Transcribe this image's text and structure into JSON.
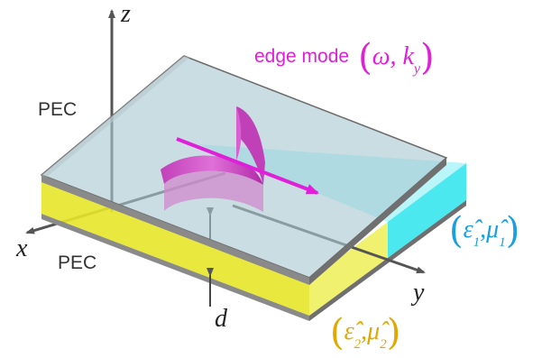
{
  "labels": {
    "pec_top": "PEC",
    "pec_bottom": "PEC",
    "axis_x": "x",
    "axis_y": "y",
    "axis_z": "z",
    "gap": "d",
    "edge_mode_text": "edge mode",
    "edge_mode_params": "ω, k",
    "edge_mode_sub": "y",
    "region1_eps": "ε̂",
    "region1_eps_sub": "1",
    "region1_mu": "μ̂",
    "region1_mu_sub": "1",
    "region2_eps": "ε̂",
    "region2_eps_sub": "2",
    "region2_mu": "μ̂",
    "region2_mu_sub": "2",
    "comma": ","
  },
  "colors": {
    "magenta": "#e020d8",
    "cyan_label": "#1aa0e0",
    "yellow_label": "#e0a800",
    "cyan_region": "#38e6ee",
    "yellow_region": "#e6e62a",
    "plate": "#9fbcc8",
    "axis": "#555555"
  }
}
